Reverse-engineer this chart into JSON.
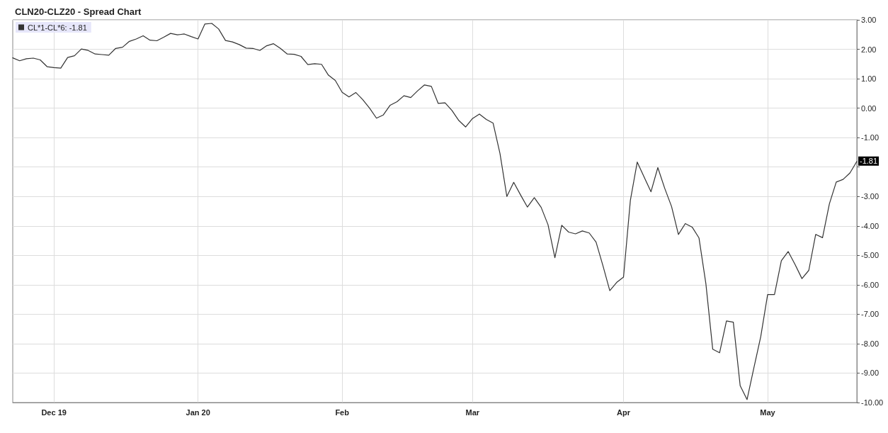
{
  "chart_data": {
    "type": "line",
    "title": "CLN20-CLZ20 - Spread Chart",
    "categories": [
      null,
      null,
      null,
      null,
      null,
      null,
      "Dec 19",
      null,
      null,
      null,
      null,
      null,
      null,
      null,
      null,
      null,
      null,
      null,
      null,
      null,
      null,
      null,
      null,
      null,
      null,
      null,
      null,
      "Jan 20",
      null,
      null,
      null,
      null,
      null,
      null,
      null,
      null,
      null,
      null,
      null,
      null,
      null,
      null,
      null,
      null,
      null,
      null,
      null,
      null,
      "Feb",
      null,
      null,
      null,
      null,
      null,
      null,
      null,
      null,
      null,
      null,
      null,
      null,
      null,
      null,
      null,
      null,
      null,
      null,
      "Mar",
      null,
      null,
      null,
      null,
      null,
      null,
      null,
      null,
      null,
      null,
      null,
      null,
      null,
      null,
      null,
      null,
      null,
      null,
      null,
      null,
      null,
      "Apr",
      null,
      null,
      null,
      null,
      null,
      null,
      null,
      null,
      null,
      null,
      null,
      null,
      null,
      null,
      null,
      null,
      null,
      null,
      null,
      null,
      "May",
      null,
      null,
      null,
      null,
      null,
      null,
      null,
      null,
      null,
      null,
      null,
      null,
      null
    ],
    "series": [
      {
        "name": "CL*1-CL*6: -1.81",
        "color": "#333333",
        "values": [
          1.71,
          1.61,
          1.68,
          1.7,
          1.64,
          1.41,
          1.38,
          1.36,
          1.72,
          1.78,
          2.01,
          1.96,
          1.84,
          1.82,
          1.8,
          2.03,
          2.07,
          2.27,
          2.35,
          2.46,
          2.31,
          2.29,
          2.41,
          2.54,
          2.49,
          2.52,
          2.43,
          2.35,
          2.86,
          2.88,
          2.69,
          2.3,
          2.25,
          2.16,
          2.04,
          2.03,
          1.96,
          2.12,
          2.19,
          2.03,
          1.84,
          1.83,
          1.76,
          1.48,
          1.51,
          1.49,
          1.12,
          0.94,
          0.54,
          0.38,
          0.53,
          0.29,
          0.0,
          -0.34,
          -0.23,
          0.1,
          0.22,
          0.42,
          0.36,
          0.59,
          0.79,
          0.74,
          0.16,
          0.18,
          -0.08,
          -0.42,
          -0.64,
          -0.35,
          -0.2,
          -0.38,
          -0.51,
          -1.54,
          -3.0,
          -2.52,
          -2.95,
          -3.36,
          -3.04,
          -3.37,
          -3.96,
          -5.08,
          -3.98,
          -4.21,
          -4.27,
          -4.17,
          -4.24,
          -4.55,
          -5.35,
          -6.2,
          -5.92,
          -5.74,
          -3.13,
          -1.83,
          -2.34,
          -2.84,
          -2.02,
          -2.72,
          -3.34,
          -4.29,
          -3.92,
          -4.04,
          -4.41,
          -5.96,
          -8.19,
          -8.31,
          -7.23,
          -7.27,
          -9.43,
          -9.9,
          -8.82,
          -7.76,
          -6.33,
          -6.33,
          -5.18,
          -4.87,
          -5.31,
          -5.79,
          -5.51,
          -4.29,
          -4.4,
          -3.25,
          -2.51,
          -2.42,
          -2.2,
          -1.81
        ]
      }
    ],
    "ylim": [
      -10,
      3
    ],
    "yticks": [
      {
        "value": 3,
        "label": "3.00"
      },
      {
        "value": 2,
        "label": "2.00"
      },
      {
        "value": 1,
        "label": "1.00"
      },
      {
        "value": 0,
        "label": "0.00"
      },
      {
        "value": -1,
        "label": "-1.00"
      },
      {
        "value": -2,
        "label": null
      },
      {
        "value": -3,
        "label": "-3.00"
      },
      {
        "value": -4,
        "label": "-4.00"
      },
      {
        "value": -5,
        "label": "-5.00"
      },
      {
        "value": -6,
        "label": "-6.00"
      },
      {
        "value": -7,
        "label": "-7.00"
      },
      {
        "value": -8,
        "label": "-8.00"
      },
      {
        "value": -9,
        "label": "-9.00"
      },
      {
        "value": -10,
        "label": "-10.00"
      }
    ],
    "annotations": [
      {
        "text": "-1.81",
        "y": -1.81
      }
    ],
    "grid": true,
    "legend": "top left",
    "marker": "none",
    "line_style": "solid"
  }
}
